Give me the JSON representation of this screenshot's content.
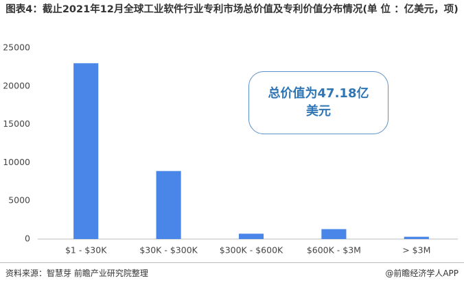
{
  "chart_data": {
    "type": "bar",
    "title": "图表4：截止2021年12月全球工业软件行业专利市场总价值及专利价值分布情况(单 位 ：亿美元，项)",
    "categories": [
      "$1 - $30K",
      "$30K - $300K",
      "$300K - $600K",
      "$600K - $3M",
      "> $3M"
    ],
    "values": [
      23000,
      8900,
      700,
      1300,
      300
    ],
    "color": "#4a86e8",
    "ylim": [
      0,
      25000
    ],
    "yticks": [
      0,
      5000,
      10000,
      15000,
      20000,
      25000
    ],
    "grid": false,
    "annotation": "总价值为47.18亿美元",
    "source": "资料来源：智慧芽 前瞻产业研究院整理",
    "brand": "@前瞻经济学人APP"
  }
}
